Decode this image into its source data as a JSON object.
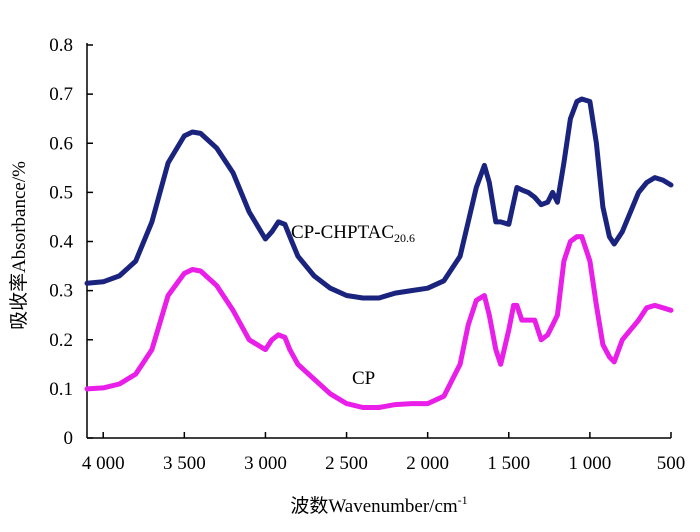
{
  "chart_data": {
    "type": "line",
    "xlabel_prefix": "波数",
    "xlabel_text": "Wavenumber/cm",
    "xlabel_sup": "-1",
    "ylabel": "吸收率Absorbance/%",
    "xlim": [
      4100,
      500
    ],
    "ylim": [
      0,
      0.8
    ],
    "x_ticks": [
      4000,
      3500,
      3000,
      2500,
      2000,
      1500,
      1000,
      500
    ],
    "x_tick_labels": [
      "4 000",
      "3 500",
      "3 000",
      "2 500",
      "2 000",
      "1 500",
      "1 000",
      "500"
    ],
    "y_ticks": [
      0,
      0.1,
      0.2,
      0.3,
      0.4,
      0.5,
      0.6,
      0.7,
      0.8
    ],
    "y_tick_labels": [
      "0",
      "0.1",
      "0.2",
      "0.3",
      "0.4",
      "0.5",
      "0.6",
      "0.7",
      "0.8"
    ],
    "series": [
      {
        "name": "CP-CHPTAC",
        "name_sub": "20.6",
        "color": "#1a237e",
        "x": [
          4100,
          4000,
          3900,
          3800,
          3700,
          3600,
          3500,
          3450,
          3400,
          3300,
          3200,
          3100,
          3000,
          2960,
          2920,
          2880,
          2850,
          2800,
          2700,
          2600,
          2500,
          2400,
          2300,
          2200,
          2100,
          2000,
          1900,
          1800,
          1750,
          1700,
          1650,
          1620,
          1580,
          1550,
          1500,
          1450,
          1420,
          1380,
          1340,
          1300,
          1260,
          1230,
          1200,
          1160,
          1120,
          1080,
          1050,
          1000,
          960,
          920,
          880,
          850,
          800,
          700,
          650,
          600,
          550,
          500
        ],
        "y": [
          0.315,
          0.318,
          0.33,
          0.36,
          0.44,
          0.56,
          0.615,
          0.623,
          0.62,
          0.59,
          0.54,
          0.46,
          0.405,
          0.42,
          0.44,
          0.435,
          0.41,
          0.37,
          0.33,
          0.305,
          0.29,
          0.285,
          0.285,
          0.295,
          0.3,
          0.305,
          0.32,
          0.37,
          0.44,
          0.51,
          0.555,
          0.52,
          0.44,
          0.44,
          0.435,
          0.51,
          0.505,
          0.5,
          0.49,
          0.475,
          0.48,
          0.5,
          0.48,
          0.56,
          0.65,
          0.685,
          0.69,
          0.685,
          0.6,
          0.47,
          0.41,
          0.395,
          0.42,
          0.5,
          0.52,
          0.53,
          0.525,
          0.515
        ]
      },
      {
        "name": "CP",
        "name_sub": "",
        "color": "#e91ee8",
        "x": [
          4100,
          4000,
          3900,
          3800,
          3700,
          3600,
          3500,
          3450,
          3400,
          3300,
          3200,
          3100,
          3000,
          2960,
          2920,
          2880,
          2850,
          2800,
          2700,
          2600,
          2500,
          2400,
          2300,
          2200,
          2100,
          2000,
          1900,
          1800,
          1750,
          1700,
          1650,
          1620,
          1580,
          1550,
          1500,
          1470,
          1450,
          1420,
          1380,
          1340,
          1300,
          1260,
          1230,
          1200,
          1160,
          1120,
          1080,
          1050,
          1000,
          960,
          920,
          880,
          850,
          800,
          700,
          650,
          600,
          550,
          500
        ],
        "y": [
          0.1,
          0.102,
          0.11,
          0.13,
          0.18,
          0.29,
          0.335,
          0.343,
          0.34,
          0.31,
          0.26,
          0.2,
          0.18,
          0.2,
          0.21,
          0.205,
          0.18,
          0.15,
          0.12,
          0.09,
          0.07,
          0.062,
          0.062,
          0.068,
          0.07,
          0.07,
          0.085,
          0.15,
          0.23,
          0.28,
          0.29,
          0.25,
          0.18,
          0.15,
          0.22,
          0.27,
          0.27,
          0.24,
          0.24,
          0.24,
          0.2,
          0.21,
          0.23,
          0.25,
          0.36,
          0.4,
          0.41,
          0.41,
          0.36,
          0.27,
          0.19,
          0.165,
          0.155,
          0.2,
          0.24,
          0.265,
          0.27,
          0.265,
          0.26
        ]
      }
    ]
  }
}
